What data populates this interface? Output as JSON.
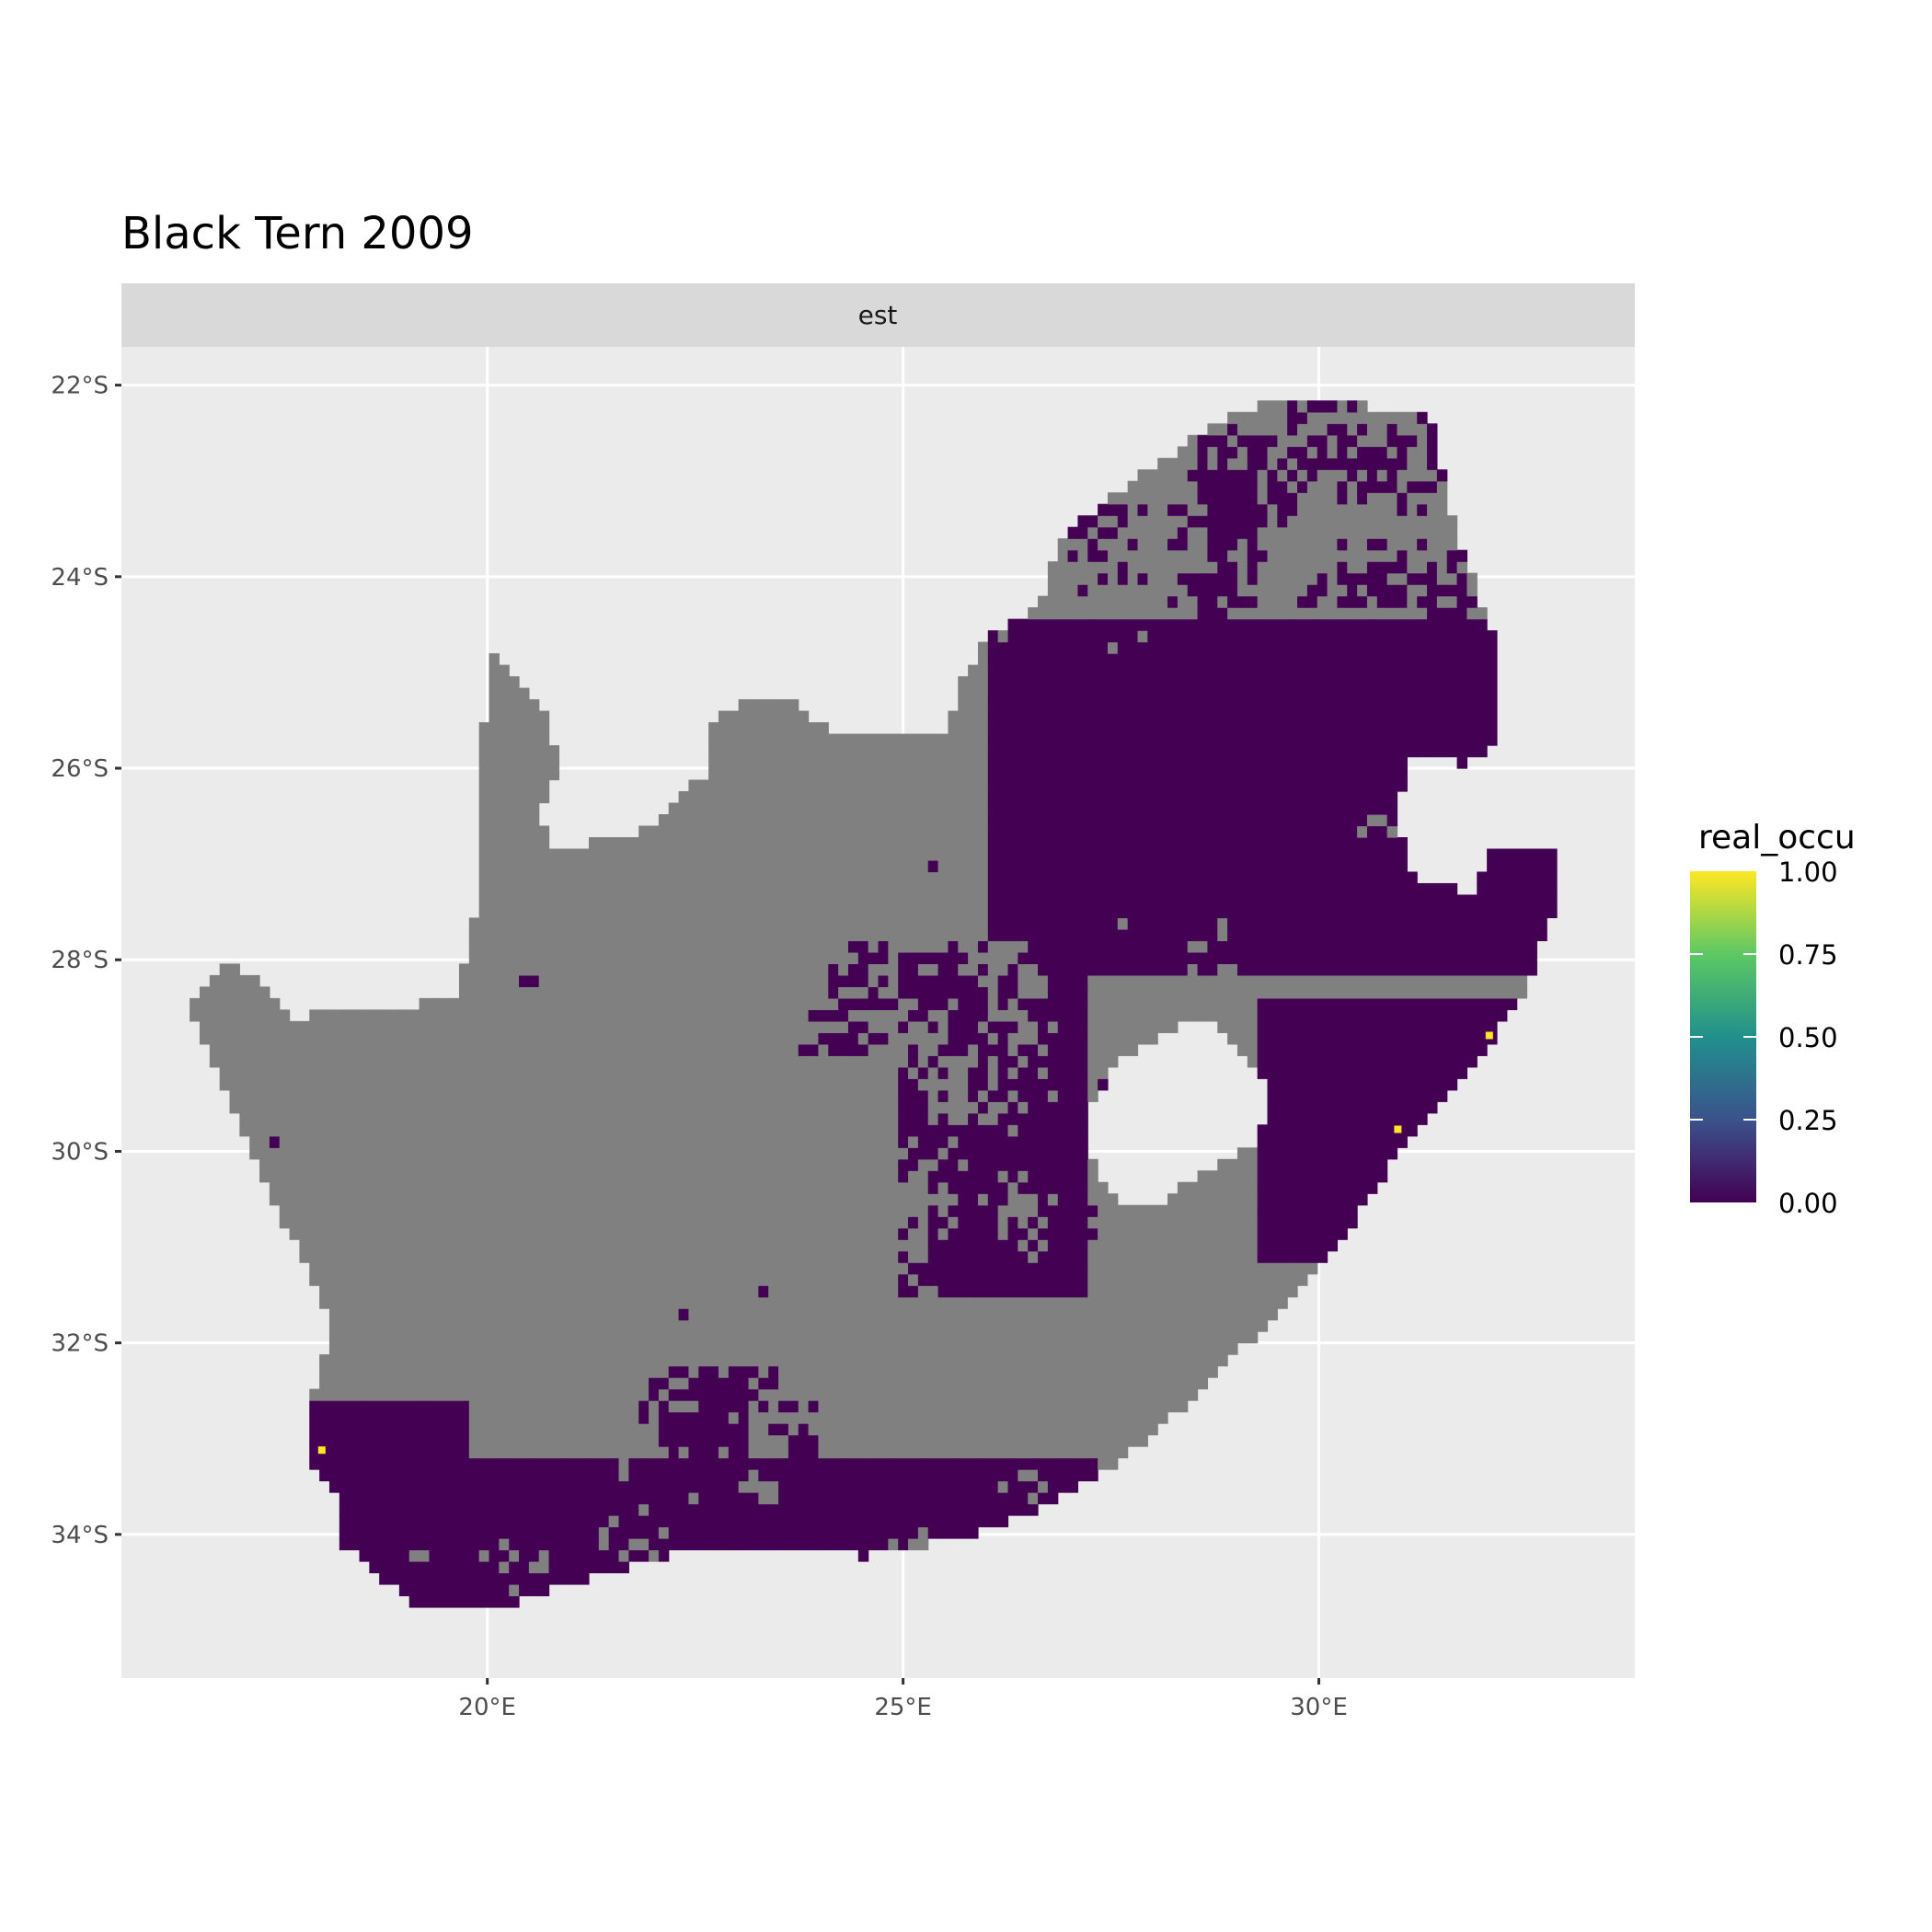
{
  "chart_data": {
    "type": "heatmap",
    "title": "Black Tern 2009",
    "facet_label": "est",
    "xlim": [
      15.6,
      33.8
    ],
    "ylim": [
      -35.5,
      -21.6
    ],
    "x_ticks": [
      {
        "value": 20,
        "label": "20°E"
      },
      {
        "value": 25,
        "label": "25°E"
      },
      {
        "value": 30,
        "label": "30°E"
      }
    ],
    "y_ticks": [
      {
        "value": -22,
        "label": "22°S"
      },
      {
        "value": -24,
        "label": "24°S"
      },
      {
        "value": -26,
        "label": "26°S"
      },
      {
        "value": -28,
        "label": "28°S"
      },
      {
        "value": -30,
        "label": "30°S"
      },
      {
        "value": -32,
        "label": "32°S"
      },
      {
        "value": -34,
        "label": "34°S"
      }
    ],
    "grid": true,
    "legend": {
      "title": "real_occu",
      "placement": "right",
      "range": [
        0,
        1
      ],
      "breaks": [
        {
          "value": 1.0,
          "label": "1.00"
        },
        {
          "value": 0.75,
          "label": "0.75"
        },
        {
          "value": 0.5,
          "label": "0.50"
        },
        {
          "value": 0.25,
          "label": "0.25"
        },
        {
          "value": 0.0,
          "label": "0.00"
        }
      ],
      "palette": "viridis",
      "colors": [
        "#440154",
        "#3B528B",
        "#21908C",
        "#5DC863",
        "#FDE725"
      ]
    },
    "na_color": "#808080",
    "region_outline_lonlat": [
      [
        16.42,
        -28.52
      ],
      [
        16.83,
        -28.04
      ],
      [
        17.31,
        -28.23
      ],
      [
        17.68,
        -28.69
      ],
      [
        18.05,
        -28.49
      ],
      [
        18.87,
        -28.49
      ],
      [
        19.61,
        -28.43
      ],
      [
        19.88,
        -27.45
      ],
      [
        19.99,
        -24.78
      ],
      [
        20.21,
        -24.91
      ],
      [
        20.51,
        -25.23
      ],
      [
        20.73,
        -25.49
      ],
      [
        20.88,
        -26.02
      ],
      [
        20.65,
        -26.41
      ],
      [
        20.73,
        -26.8
      ],
      [
        21.4,
        -26.77
      ],
      [
        21.84,
        -26.67
      ],
      [
        22.66,
        -26.02
      ],
      [
        22.73,
        -25.49
      ],
      [
        23.03,
        -25.3
      ],
      [
        23.63,
        -25.3
      ],
      [
        24.22,
        -25.69
      ],
      [
        25.11,
        -25.69
      ],
      [
        25.56,
        -25.56
      ],
      [
        25.71,
        -25.1
      ],
      [
        26.0,
        -24.65
      ],
      [
        26.67,
        -24.26
      ],
      [
        26.9,
        -23.6
      ],
      [
        27.34,
        -23.28
      ],
      [
        27.94,
        -22.89
      ],
      [
        28.83,
        -22.37
      ],
      [
        29.57,
        -22.1
      ],
      [
        30.16,
        -22.17
      ],
      [
        31.35,
        -22.3
      ],
      [
        31.57,
        -23.28
      ],
      [
        31.87,
        -24.06
      ],
      [
        32.1,
        -24.58
      ],
      [
        32.1,
        -25.75
      ],
      [
        31.8,
        -25.95
      ],
      [
        31.13,
        -25.89
      ],
      [
        30.91,
        -26.54
      ],
      [
        31.13,
        -27.12
      ],
      [
        31.87,
        -27.32
      ],
      [
        32.1,
        -26.8
      ],
      [
        32.92,
        -26.8
      ],
      [
        32.92,
        -27.19
      ],
      [
        32.62,
        -27.97
      ],
      [
        32.39,
        -28.49
      ],
      [
        31.8,
        -29.14
      ],
      [
        30.91,
        -30.06
      ],
      [
        30.16,
        -31.1
      ],
      [
        29.27,
        -31.88
      ],
      [
        28.38,
        -32.67
      ],
      [
        27.49,
        -33.32
      ],
      [
        26.74,
        -33.71
      ],
      [
        25.71,
        -34.03
      ],
      [
        24.52,
        -34.23
      ],
      [
        23.33,
        -34.1
      ],
      [
        22.14,
        -34.23
      ],
      [
        21.1,
        -34.49
      ],
      [
        19.99,
        -34.82
      ],
      [
        19.17,
        -34.75
      ],
      [
        18.57,
        -34.36
      ],
      [
        18.28,
        -34.1
      ],
      [
        18.2,
        -33.64
      ],
      [
        17.83,
        -33.19
      ],
      [
        17.83,
        -32.67
      ],
      [
        18.13,
        -31.88
      ],
      [
        17.68,
        -30.97
      ],
      [
        17.31,
        -30.32
      ],
      [
        16.79,
        -29.28
      ]
    ],
    "hole_outline_lonlat": [
      [
        27.19,
        -29.6
      ],
      [
        27.64,
        -29.01
      ],
      [
        28.38,
        -28.69
      ],
      [
        28.75,
        -28.62
      ],
      [
        29.42,
        -29.28
      ],
      [
        29.27,
        -29.93
      ],
      [
        28.38,
        -30.32
      ],
      [
        27.94,
        -30.64
      ],
      [
        27.49,
        -30.45
      ],
      [
        27.19,
        -29.93
      ]
    ],
    "high_cells": [
      {
        "lon": 32.05,
        "lat": -28.79,
        "value": 1.0
      },
      {
        "lon": 30.95,
        "lat": -29.77,
        "value": 1.0
      },
      {
        "lon": 18.01,
        "lat": -33.12,
        "value": 1.0
      }
    ]
  }
}
